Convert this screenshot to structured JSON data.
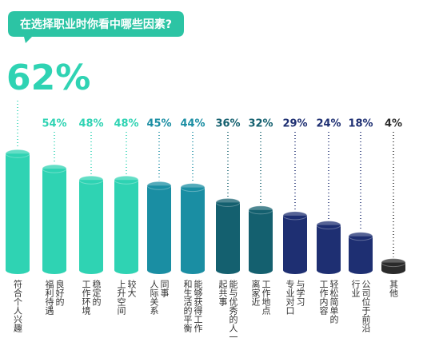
{
  "chart_data": {
    "type": "bar",
    "title": "在选择职业时你看中哪些因素?",
    "categories": [
      "符合个人兴趣",
      "良好的\n福利待遇",
      "稳定的\n工作环境",
      "较大\n上升空间",
      "同事\n人际关系",
      "能够获得工作\n和生活的平衡",
      "能与优秀的人一\n起共事",
      "工作地点\n离家近",
      "与学习\n专业对口",
      "轻松简单的\n工作内容",
      "公司位于前沿\n行业",
      "其他"
    ],
    "values": [
      62,
      54,
      48,
      48,
      45,
      44,
      36,
      32,
      29,
      24,
      18,
      4
    ],
    "value_labels": [
      "62%",
      "54%",
      "48%",
      "48%",
      "45%",
      "44%",
      "36%",
      "32%",
      "29%",
      "24%",
      "18%",
      "4%"
    ],
    "colors": [
      "#2fd3b3",
      "#2fd3b3",
      "#2fd3b3",
      "#2fd3b3",
      "#1a8ea3",
      "#1a8ea3",
      "#14606f",
      "#14606f",
      "#1e2f72",
      "#1e2f72",
      "#1e2f72",
      "#2b2b2b"
    ]
  }
}
